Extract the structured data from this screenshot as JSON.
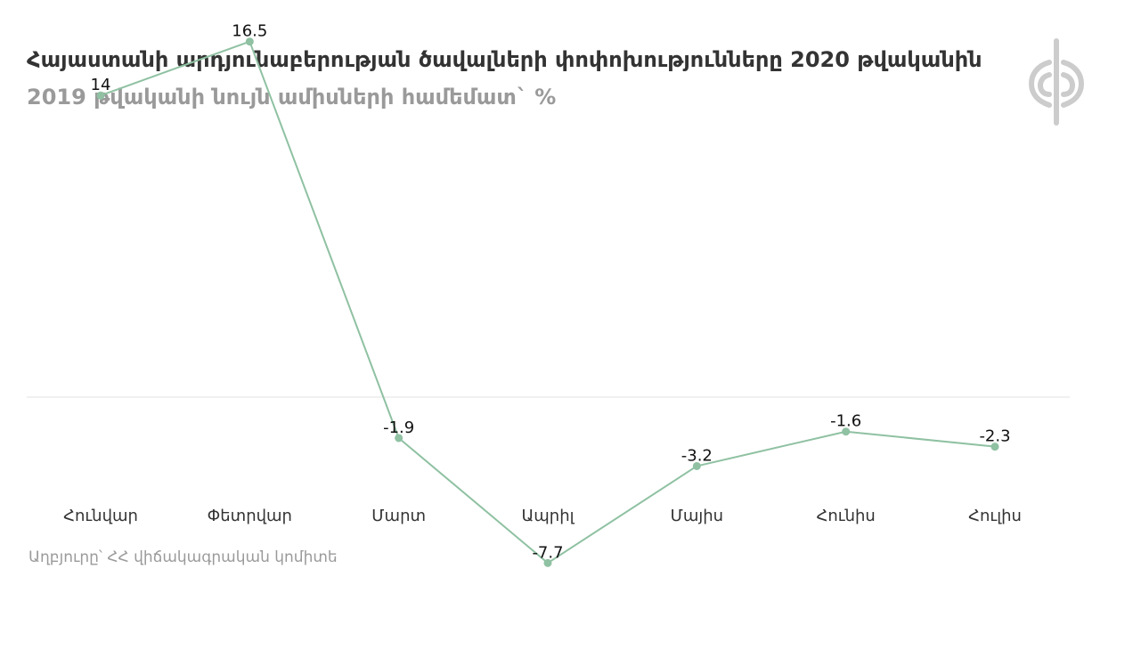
{
  "header": {
    "title": "Հայաստանի արդյունաբերության ծավալների փոփոխությունները 2020 թվականին",
    "subtitle": "2019 թվականի նույն ամիսների համեմատ` %"
  },
  "footer": {
    "source": "Աղբյուրը՝ ՀՀ վիճակագրական կոմիտե"
  },
  "logo": {
    "icon": "phi-emblem-icon",
    "color": "#cccccc"
  },
  "chart_data": {
    "type": "line",
    "categories": [
      "Հունվար",
      "Փետրվար",
      "Մարտ",
      "Ապրիլ",
      "Մայիս",
      "Հունիս",
      "Հուլիս"
    ],
    "series": [
      {
        "values": [
          14,
          16.5,
          -1.9,
          -7.7,
          -3.2,
          -1.6,
          -2.3
        ],
        "color": "#8fc1a2"
      }
    ],
    "data_labels": [
      "14",
      "16.5",
      "-1.9",
      "-7.7",
      "-3.2",
      "-1.6",
      "-2.3"
    ],
    "ylim": [
      -8,
      17
    ],
    "zero_line": true,
    "grid": false,
    "legend": "none"
  }
}
